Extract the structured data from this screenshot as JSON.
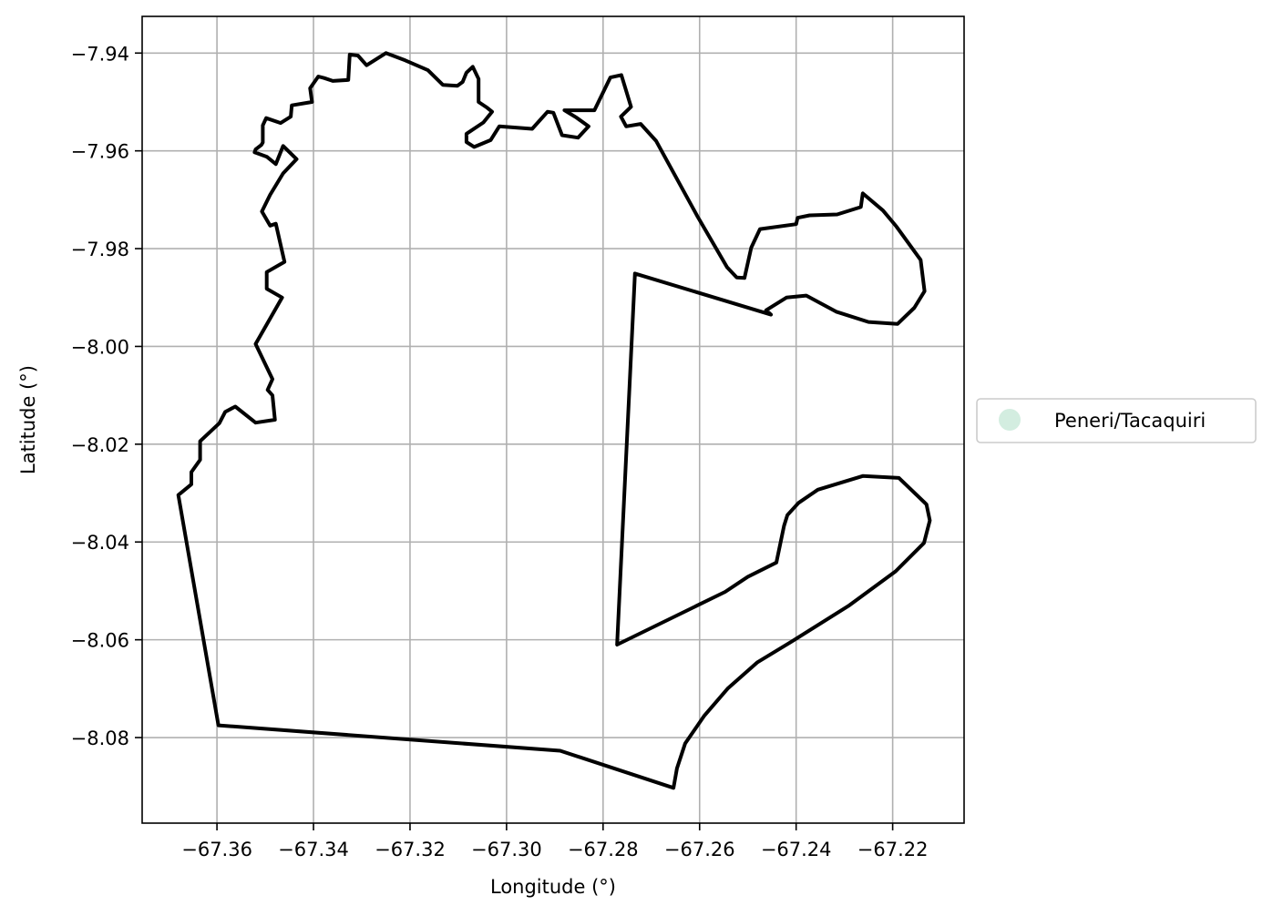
{
  "chart_data": {
    "type": "map",
    "xlabel": "Longitude (°)",
    "ylabel": "Latitude (°)",
    "xlim": [
      -67.3755,
      -67.2052
    ],
    "ylim": [
      -8.0975,
      -7.9325
    ],
    "x_ticks": [
      -67.36,
      -67.34,
      -67.32,
      -67.3,
      -67.28,
      -67.26,
      -67.24,
      -67.22
    ],
    "y_ticks": [
      -7.94,
      -7.96,
      -7.98,
      -8.0,
      -8.02,
      -8.04,
      -8.06,
      -8.08
    ],
    "x_tick_labels": [
      "−67.36",
      "−67.34",
      "−67.32",
      "−67.30",
      "−67.28",
      "−67.26",
      "−67.24",
      "−67.22"
    ],
    "y_tick_labels": [
      "−7.94",
      "−7.96",
      "−7.98",
      "−8.00",
      "−8.02",
      "−8.04",
      "−8.06",
      "−8.08"
    ],
    "grid": true,
    "legend_position": "right",
    "legend": [
      {
        "label": "Peneri/Tacaquiri",
        "marker": "circle",
        "color": "#d3ede0"
      }
    ],
    "boundary_color": "#000000",
    "boundary": [
      [
        -67.3522,
        -7.9603
      ],
      [
        -67.3497,
        -7.9612
      ],
      [
        -67.3478,
        -7.9627
      ],
      [
        -67.3463,
        -7.959
      ],
      [
        -67.3435,
        -7.9617
      ],
      [
        -67.3463,
        -7.9646
      ],
      [
        -67.349,
        -7.969
      ],
      [
        -67.3507,
        -7.9724
      ],
      [
        -67.349,
        -7.9753
      ],
      [
        -67.3478,
        -7.9749
      ],
      [
        -67.346,
        -7.9827
      ],
      [
        -67.3497,
        -7.9848
      ],
      [
        -67.3497,
        -7.9882
      ],
      [
        -67.3465,
        -7.99
      ],
      [
        -67.352,
        -7.9995
      ],
      [
        -67.3485,
        -8.0067
      ],
      [
        -67.3495,
        -8.0089
      ],
      [
        -67.3485,
        -8.01
      ],
      [
        -67.348,
        -8.015
      ],
      [
        -67.352,
        -8.0156
      ],
      [
        -67.3562,
        -8.0123
      ],
      [
        -67.3583,
        -8.0134
      ],
      [
        -67.3595,
        -8.0157
      ],
      [
        -67.3635,
        -8.0194
      ],
      [
        -67.3635,
        -8.0232
      ],
      [
        -67.3653,
        -8.0257
      ],
      [
        -67.3653,
        -8.0282
      ],
      [
        -67.368,
        -8.0304
      ],
      [
        -67.3597,
        -8.0775
      ],
      [
        -67.2889,
        -8.0827
      ],
      [
        -67.2654,
        -8.0903
      ],
      [
        -67.2647,
        -8.0863
      ],
      [
        -67.263,
        -8.0812
      ],
      [
        -67.259,
        -8.0755
      ],
      [
        -67.2542,
        -8.07
      ],
      [
        -67.248,
        -8.0646
      ],
      [
        -67.241,
        -8.0604
      ],
      [
        -67.2292,
        -8.0531
      ],
      [
        -67.2194,
        -8.046
      ],
      [
        -67.2135,
        -8.0402
      ],
      [
        -67.2123,
        -8.0356
      ],
      [
        -67.213,
        -8.0323
      ],
      [
        -67.2187,
        -8.0269
      ],
      [
        -67.2262,
        -8.0265
      ],
      [
        -67.2355,
        -8.0293
      ],
      [
        -67.2395,
        -8.032
      ],
      [
        -67.2418,
        -8.0345
      ],
      [
        -67.2425,
        -8.0367
      ],
      [
        -67.2441,
        -8.0442
      ],
      [
        -67.25,
        -8.0471
      ],
      [
        -67.2547,
        -8.0502
      ],
      [
        -67.2771,
        -8.061
      ],
      [
        -67.2734,
        -7.9851
      ],
      [
        -67.2452,
        -7.9935
      ],
      [
        -67.2462,
        -7.9926
      ],
      [
        -67.242,
        -7.99
      ],
      [
        -67.2379,
        -7.9896
      ],
      [
        -67.2317,
        -7.9929
      ],
      [
        -67.225,
        -7.995
      ],
      [
        -67.219,
        -7.9954
      ],
      [
        -67.2155,
        -7.9921
      ],
      [
        -67.2134,
        -7.9887
      ],
      [
        -67.2142,
        -7.9823
      ],
      [
        -67.2192,
        -7.9755
      ],
      [
        -67.222,
        -7.9722
      ],
      [
        -67.2262,
        -7.9687
      ],
      [
        -67.2266,
        -7.9715
      ],
      [
        -67.2315,
        -7.973
      ],
      [
        -67.2372,
        -7.9732
      ],
      [
        -67.2397,
        -7.9737
      ],
      [
        -67.24,
        -7.975
      ],
      [
        -67.2475,
        -7.976
      ],
      [
        -67.2493,
        -7.9798
      ],
      [
        -67.2507,
        -7.986
      ],
      [
        -67.2523,
        -7.9859
      ],
      [
        -67.2543,
        -7.9838
      ],
      [
        -67.2605,
        -7.9733
      ],
      [
        -67.269,
        -7.958
      ],
      [
        -67.2722,
        -7.9545
      ],
      [
        -67.2752,
        -7.955
      ],
      [
        -67.2763,
        -7.953
      ],
      [
        -67.2742,
        -7.951
      ],
      [
        -67.2762,
        -7.9445
      ],
      [
        -67.2785,
        -7.945
      ],
      [
        -67.2818,
        -7.9517
      ],
      [
        -67.288,
        -7.9517
      ],
      [
        -67.2855,
        -7.9532
      ],
      [
        -67.283,
        -7.955
      ],
      [
        -67.2852,
        -7.9573
      ],
      [
        -67.2885,
        -7.9568
      ],
      [
        -67.2903,
        -7.9522
      ],
      [
        -67.2915,
        -7.952
      ],
      [
        -67.2947,
        -7.9555
      ],
      [
        -67.3015,
        -7.955
      ],
      [
        -67.3033,
        -7.9578
      ],
      [
        -67.3067,
        -7.9592
      ],
      [
        -67.3083,
        -7.9582
      ],
      [
        -67.3083,
        -7.9565
      ],
      [
        -67.3048,
        -7.9542
      ],
      [
        -67.303,
        -7.952
      ],
      [
        -67.304,
        -7.9512
      ],
      [
        -67.3058,
        -7.95
      ],
      [
        -67.3058,
        -7.9453
      ],
      [
        -67.307,
        -7.9428
      ],
      [
        -67.3083,
        -7.944
      ],
      [
        -67.3091,
        -7.9459
      ],
      [
        -67.3102,
        -7.9467
      ],
      [
        -67.3132,
        -7.9465
      ],
      [
        -67.3163,
        -7.9435
      ],
      [
        -67.321,
        -7.9415
      ],
      [
        -67.325,
        -7.94
      ],
      [
        -67.329,
        -7.9425
      ],
      [
        -67.3308,
        -7.9405
      ],
      [
        -67.3325,
        -7.9403
      ],
      [
        -67.3328,
        -7.9455
      ],
      [
        -67.336,
        -7.9457
      ],
      [
        -67.3378,
        -7.9451
      ],
      [
        -67.339,
        -7.9448
      ],
      [
        -67.3407,
        -7.9472
      ],
      [
        -67.3403,
        -7.95
      ],
      [
        -67.3445,
        -7.9507
      ],
      [
        -67.3447,
        -7.953
      ],
      [
        -67.3468,
        -7.9543
      ],
      [
        -67.3498,
        -7.9533
      ],
      [
        -67.3505,
        -7.9548
      ],
      [
        -67.3505,
        -7.9583
      ],
      [
        -67.3508,
        -7.9588
      ],
      [
        -67.352,
        -7.9597
      ],
      [
        -67.3522,
        -7.9603
      ]
    ]
  }
}
